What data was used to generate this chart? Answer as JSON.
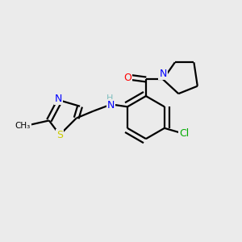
{
  "background_color": "#ebebeb",
  "atom_colors": {
    "N": "#0000ff",
    "O": "#ff0000",
    "S": "#cccc00",
    "Cl": "#00aa00",
    "H": "#7fbfbf",
    "C": "#000000"
  },
  "line_width": 1.6,
  "figsize": [
    3.0,
    3.0
  ],
  "dpi": 100
}
